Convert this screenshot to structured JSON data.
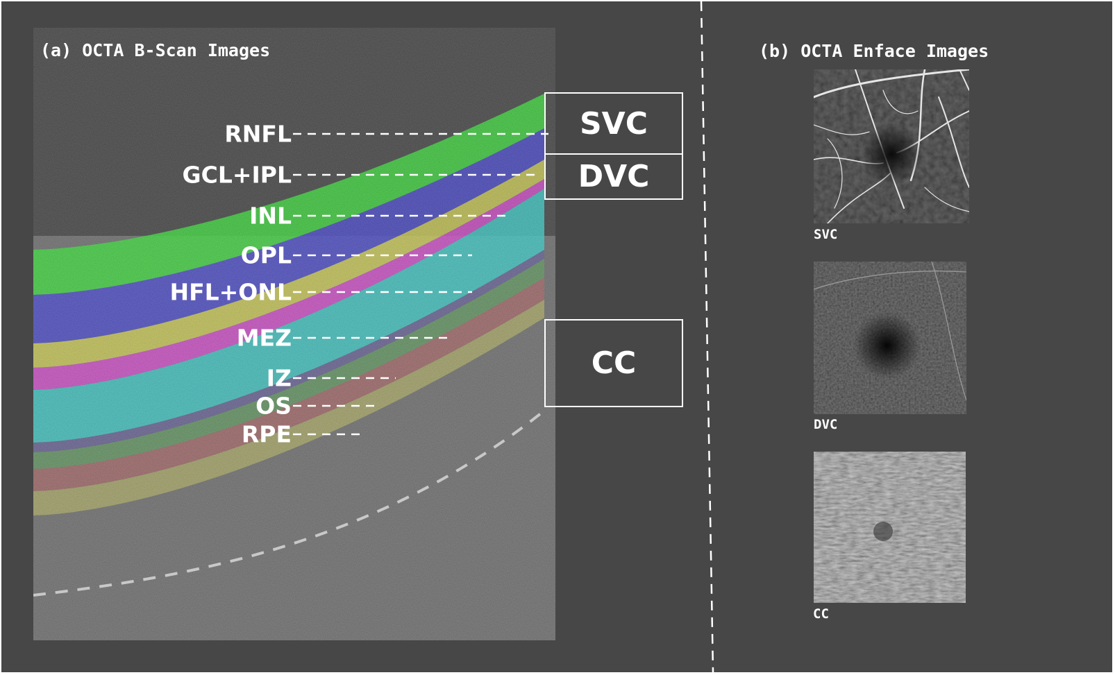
{
  "panel_a": {
    "title": "(a) OCTA B-Scan Images",
    "layers": [
      {
        "label": "RNFL",
        "color": "#2ee82e"
      },
      {
        "label": "GCL+IPL",
        "color": "#3d3dd8"
      },
      {
        "label": "INL",
        "color": "#d8d84a"
      },
      {
        "label": "OPL",
        "color": "#e040d8"
      },
      {
        "label": "HFL+ONL",
        "color": "#2ed3cf"
      },
      {
        "label": "MEZ",
        "color": "#5a4fb0"
      },
      {
        "label": "IZ",
        "color": "#4fb04f"
      },
      {
        "label": "OS",
        "color": "#c95a5a"
      },
      {
        "label": "RPE",
        "color": "#cfcf5a"
      }
    ]
  },
  "plexus_boxes": {
    "svc": "SVC",
    "dvc": "DVC",
    "cc": "CC"
  },
  "panel_b": {
    "title": "(b) OCTA Enface Images",
    "images": [
      {
        "label": "SVC"
      },
      {
        "label": "DVC"
      },
      {
        "label": "CC"
      }
    ]
  }
}
